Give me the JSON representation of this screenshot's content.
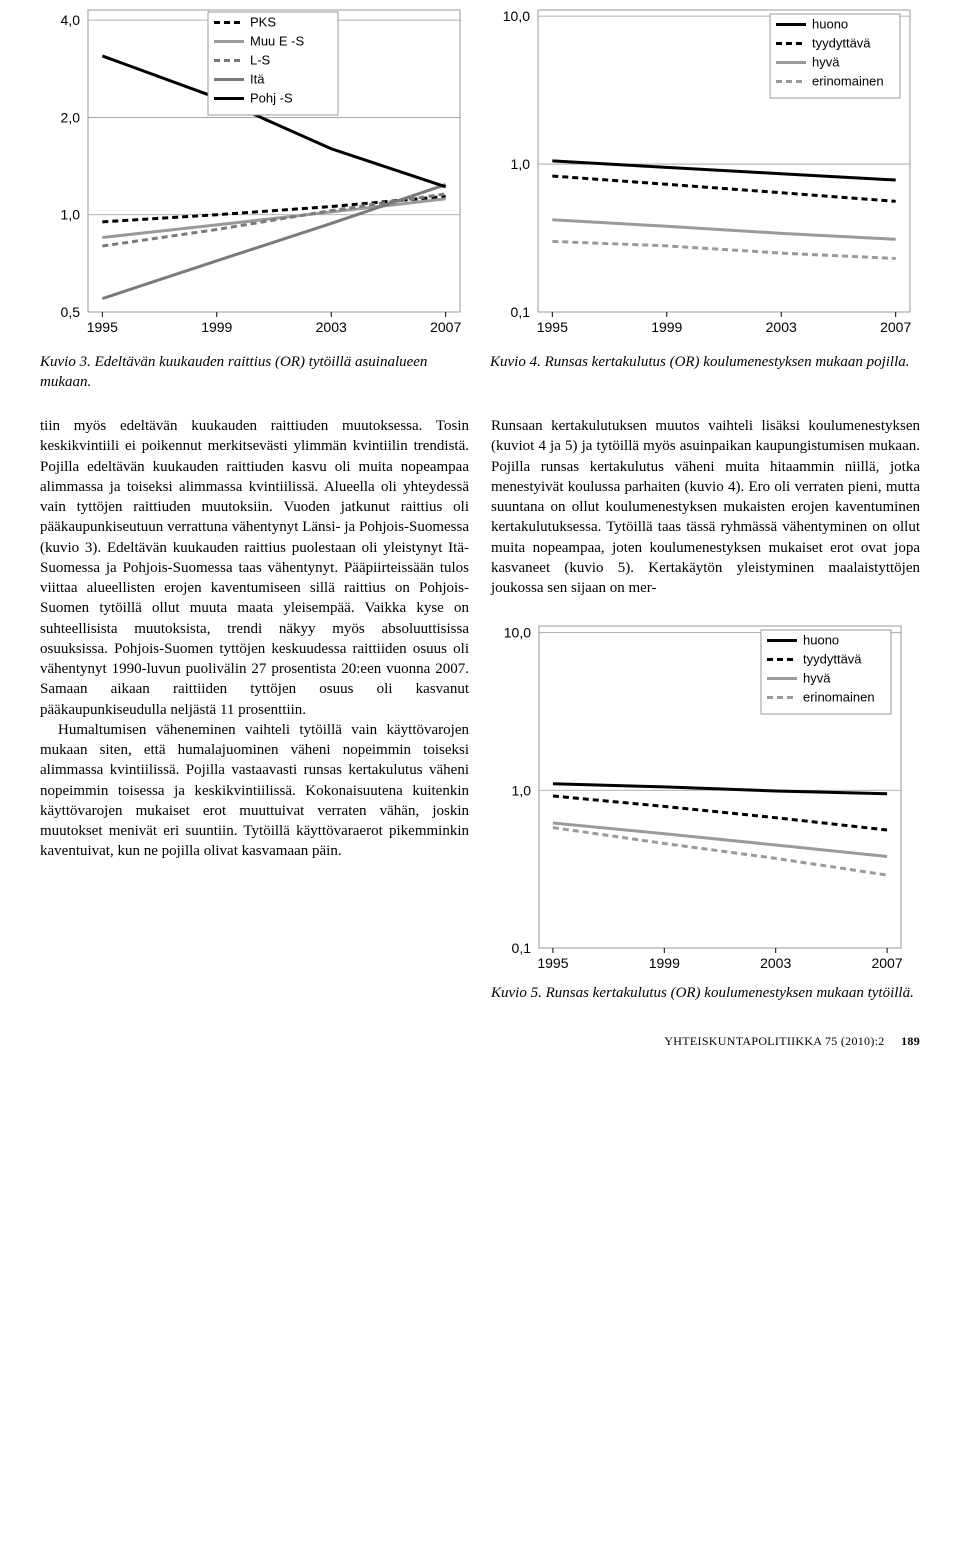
{
  "chart3": {
    "type": "line",
    "legend_items": [
      "PKS",
      "Muu E -S",
      "L-S",
      "Itä",
      "Pohj -S"
    ],
    "legend_styles": [
      {
        "color": "#000000",
        "dash": "6,4",
        "width": 3
      },
      {
        "color": "#9a9a9a",
        "dash": "0",
        "width": 3
      },
      {
        "color": "#7a7a7a",
        "dash": "6,4",
        "width": 3
      },
      {
        "color": "#7a7a7a",
        "dash": "0",
        "width": 3
      },
      {
        "color": "#000000",
        "dash": "0",
        "width": 3
      }
    ],
    "x_ticks": [
      "1995",
      "1999",
      "2003",
      "2007"
    ],
    "y_ticks": [
      "4,0",
      "2,0",
      "1,0",
      "0,5"
    ],
    "ylim": [
      0.5,
      4.3
    ],
    "xlim": [
      1994.5,
      2007.5
    ],
    "series": [
      {
        "color": "#000000",
        "dash": "6,4",
        "width": 3,
        "pts": [
          [
            1995,
            0.95
          ],
          [
            1999,
            1.0
          ],
          [
            2003,
            1.06
          ],
          [
            2007,
            1.14
          ]
        ]
      },
      {
        "color": "#9a9a9a",
        "dash": "0",
        "width": 3,
        "pts": [
          [
            1995,
            0.85
          ],
          [
            1999,
            0.93
          ],
          [
            2003,
            1.02
          ],
          [
            2007,
            1.12
          ]
        ]
      },
      {
        "color": "#7a7a7a",
        "dash": "6,4",
        "width": 3,
        "pts": [
          [
            1995,
            0.8
          ],
          [
            1999,
            0.9
          ],
          [
            2003,
            1.03
          ],
          [
            2007,
            1.16
          ]
        ]
      },
      {
        "color": "#7a7a7a",
        "dash": "0",
        "width": 3,
        "pts": [
          [
            1995,
            0.55
          ],
          [
            1999,
            0.72
          ],
          [
            2003,
            0.94
          ],
          [
            2007,
            1.24
          ]
        ]
      },
      {
        "color": "#000000",
        "dash": "0",
        "width": 3,
        "pts": [
          [
            1995,
            3.1
          ],
          [
            1999,
            2.3
          ],
          [
            2003,
            1.6
          ],
          [
            2007,
            1.22
          ]
        ]
      }
    ],
    "grid_color": "#9a9a9a",
    "background": "#ffffff",
    "tick_fontsize": 14,
    "legend_fontsize": 13,
    "caption": "Kuvio 3. Edeltävän kuukauden raittius (OR) tytöillä asuinalueen mukaan."
  },
  "chart4": {
    "type": "line",
    "legend_items": [
      "huono",
      "tyydyttävä",
      "hyvä",
      "erinomainen"
    ],
    "legend_styles": [
      {
        "color": "#000000",
        "dash": "0",
        "width": 3
      },
      {
        "color": "#000000",
        "dash": "6,4",
        "width": 3
      },
      {
        "color": "#9a9a9a",
        "dash": "0",
        "width": 3
      },
      {
        "color": "#9a9a9a",
        "dash": "6,4",
        "width": 3
      }
    ],
    "x_ticks": [
      "1995",
      "1999",
      "2003",
      "2007"
    ],
    "y_ticks": [
      "10,0",
      "1,0",
      "0,1"
    ],
    "ylim": [
      0.1,
      11
    ],
    "xlim": [
      1994.5,
      2007.5
    ],
    "series": [
      {
        "color": "#000000",
        "dash": "0",
        "width": 3,
        "pts": [
          [
            1995,
            1.05
          ],
          [
            1999,
            0.95
          ],
          [
            2003,
            0.86
          ],
          [
            2007,
            0.78
          ]
        ]
      },
      {
        "color": "#000000",
        "dash": "6,4",
        "width": 3,
        "pts": [
          [
            1995,
            0.83
          ],
          [
            1999,
            0.73
          ],
          [
            2003,
            0.64
          ],
          [
            2007,
            0.56
          ]
        ]
      },
      {
        "color": "#9a9a9a",
        "dash": "0",
        "width": 3,
        "pts": [
          [
            1995,
            0.42
          ],
          [
            1999,
            0.38
          ],
          [
            2003,
            0.34
          ],
          [
            2007,
            0.31
          ]
        ]
      },
      {
        "color": "#9a9a9a",
        "dash": "6,4",
        "width": 3,
        "pts": [
          [
            1995,
            0.3
          ],
          [
            1999,
            0.28
          ],
          [
            2003,
            0.25
          ],
          [
            2007,
            0.23
          ]
        ]
      }
    ],
    "grid_color": "#9a9a9a",
    "background": "#ffffff",
    "tick_fontsize": 14,
    "legend_fontsize": 13,
    "caption": "Kuvio 4. Runsas kertakulutus (OR) koulumenestyksen mukaan pojilla."
  },
  "chart5": {
    "type": "line",
    "legend_items": [
      "huono",
      "tyydyttävä",
      "hyvä",
      "erinomainen"
    ],
    "legend_styles": [
      {
        "color": "#000000",
        "dash": "0",
        "width": 3
      },
      {
        "color": "#000000",
        "dash": "6,4",
        "width": 3
      },
      {
        "color": "#9a9a9a",
        "dash": "0",
        "width": 3
      },
      {
        "color": "#9a9a9a",
        "dash": "6,4",
        "width": 3
      }
    ],
    "x_ticks": [
      "1995",
      "1999",
      "2003",
      "2007"
    ],
    "y_ticks": [
      "10,0",
      "1,0",
      "0,1"
    ],
    "ylim": [
      0.1,
      11
    ],
    "xlim": [
      1994.5,
      2007.5
    ],
    "series": [
      {
        "color": "#000000",
        "dash": "0",
        "width": 3,
        "pts": [
          [
            1995,
            1.1
          ],
          [
            1999,
            1.05
          ],
          [
            2003,
            0.99
          ],
          [
            2007,
            0.95
          ]
        ]
      },
      {
        "color": "#000000",
        "dash": "6,4",
        "width": 3,
        "pts": [
          [
            1995,
            0.92
          ],
          [
            1999,
            0.79
          ],
          [
            2003,
            0.67
          ],
          [
            2007,
            0.56
          ]
        ]
      },
      {
        "color": "#9a9a9a",
        "dash": "0",
        "width": 3,
        "pts": [
          [
            1995,
            0.62
          ],
          [
            1999,
            0.53
          ],
          [
            2003,
            0.45
          ],
          [
            2007,
            0.38
          ]
        ]
      },
      {
        "color": "#9a9a9a",
        "dash": "6,4",
        "width": 3,
        "pts": [
          [
            1995,
            0.58
          ],
          [
            1999,
            0.46
          ],
          [
            2003,
            0.37
          ],
          [
            2007,
            0.29
          ]
        ]
      }
    ],
    "grid_color": "#9a9a9a",
    "background": "#ffffff",
    "tick_fontsize": 14,
    "legend_fontsize": 13,
    "caption": "Kuvio 5. Runsas kertakulutus (OR) koulumenestyksen mukaan tytöillä."
  },
  "body_left": {
    "p1": "tiin myös edeltävän kuukauden raittiuden muutoksessa. Tosin keskikvintiili ei poikennut merkitsevästi ylimmän kvintiilin trendistä. Pojilla edeltävän kuukauden raittiuden kasvu oli muita nopeampaa alimmassa ja toiseksi alimmassa kvintiilissä. Alueella oli yhteydessä vain tyttöjen raittiuden muutoksiin. Vuoden jatkunut raittius oli pääkaupunkiseutuun verrattuna vähentynyt Länsi- ja Pohjois-Suomessa (kuvio 3). Edeltävän kuukauden raittius puolestaan oli yleistynyt Itä-Suomessa ja Pohjois-Suomessa taas vähentynyt. Pääpiirteissään tulos viittaa alueellisten erojen kaventumiseen sillä raittius on Pohjois-Suomen tytöillä ollut muuta maata yleisempää. Vaikka kyse on suhteellisista muutoksista, trendi näkyy myös absoluuttisissa osuuksissa. Pohjois-Suomen tyttöjen keskuudessa raittiiden osuus oli vähentynyt 1990-luvun puolivälin 27 prosentista 20:een vuonna 2007. Samaan aikaan raittiiden tyttöjen osuus oli kasvanut pääkaupunkiseudulla neljästä 11 prosenttiin.",
    "p2": "Humaltumisen väheneminen vaihteli tytöillä vain käyttövarojen mukaan siten, että humalajuominen väheni nopeimmin toiseksi alimmassa kvintiilissä. Pojilla vastaavasti runsas kertakulutus väheni nopeimmin toisessa ja keskikvintiilissä. Kokonaisuutena kuitenkin käyttövarojen mukaiset erot muuttuivat verraten vähän, joskin muutokset menivät eri suuntiin. Tytöillä käyttövaraerot pikemminkin kaventuivat, kun ne pojilla olivat kasvamaan päin."
  },
  "body_right": {
    "p1": "Runsaan kertakulutuksen muutos vaihteli lisäksi koulumenestyksen (kuviot 4 ja 5) ja tytöillä myös asuinpaikan kaupungistumisen mukaan. Pojilla runsas kertakulutus väheni muita hitaammin niillä, jotka menestyivät koulussa parhaiten (kuvio 4). Ero oli verraten pieni, mutta suuntana on ollut koulumenestyksen mukaisten erojen kaventuminen kertakulutuksessa. Tytöillä taas tässä ryhmässä vähentyminen on ollut muita nopeampaa, joten koulumenestyksen mukaiset erot ovat jopa kasvaneet (kuvio 5). Kertakäytön yleistyminen maalaistyttöjen joukossa sen sijaan on mer-"
  },
  "footer": {
    "journal": "YHTEISKUNTAPOLITIIKKA 75 (2010):2",
    "page": "189"
  }
}
